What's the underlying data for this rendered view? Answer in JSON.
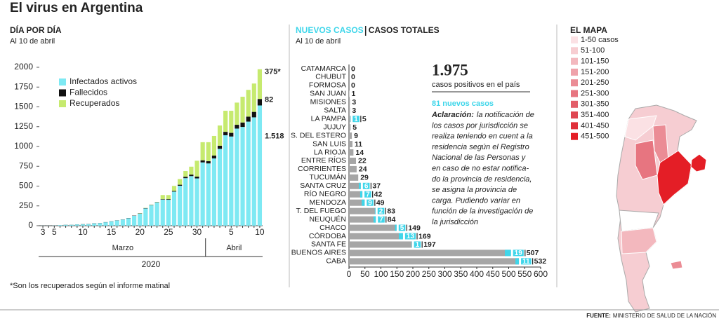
{
  "title": "El virus en Argentina",
  "chart_data": [
    {
      "type": "stacked_bar",
      "title": "DÍA POR DÍA",
      "subtitle": "Al 10 de abril",
      "categories": [
        "3",
        null,
        "5",
        null,
        null,
        null,
        null,
        "10",
        null,
        null,
        null,
        null,
        "15",
        null,
        null,
        null,
        null,
        "20",
        null,
        null,
        null,
        null,
        "25",
        null,
        null,
        null,
        null,
        "30",
        null,
        null,
        null,
        null,
        null,
        "5",
        null,
        null,
        null,
        null,
        "10"
      ],
      "series": [
        {
          "name": "Infectados activos",
          "color": "#7ee9f3",
          "values": [
            1,
            1,
            2,
            8,
            11,
            11,
            16,
            17,
            19,
            29,
            32,
            43,
            54,
            66,
            77,
            94,
            125,
            152,
            218,
            259,
            294,
            329,
            327,
            430,
            504,
            600,
            626,
            597,
            799,
            786,
            849,
            970,
            1142,
            1126,
            1226,
            1247,
            1314,
            1368,
            1518
          ],
          "value_labels": [
            null,
            null,
            null,
            null,
            null,
            null,
            null,
            null,
            null,
            null,
            null,
            null,
            null,
            null,
            null,
            null,
            null,
            null,
            null,
            null,
            null,
            null,
            null,
            null,
            null,
            null,
            null,
            null,
            null,
            null,
            null,
            null,
            null,
            null,
            null,
            null,
            null,
            null,
            "1.518"
          ]
        },
        {
          "name": "Fallecidos",
          "color": "#111111",
          "values": [
            0,
            0,
            0,
            0,
            1,
            1,
            1,
            2,
            2,
            2,
            2,
            2,
            2,
            2,
            2,
            3,
            3,
            3,
            4,
            4,
            4,
            6,
            8,
            9,
            13,
            18,
            19,
            23,
            27,
            28,
            36,
            39,
            43,
            46,
            48,
            56,
            63,
            69,
            82
          ],
          "value_labels": [
            null,
            null,
            null,
            null,
            null,
            null,
            null,
            null,
            null,
            null,
            null,
            null,
            null,
            null,
            null,
            null,
            null,
            null,
            null,
            null,
            null,
            null,
            null,
            null,
            null,
            null,
            null,
            null,
            null,
            null,
            null,
            null,
            null,
            null,
            null,
            null,
            null,
            null,
            "82"
          ]
        },
        {
          "name": "Recuperados",
          "color": "#c6ea6f",
          "values": [
            0,
            0,
            0,
            0,
            0,
            0,
            0,
            0,
            0,
            0,
            0,
            0,
            0,
            0,
            0,
            0,
            0,
            3,
            3,
            3,
            3,
            52,
            52,
            63,
            72,
            72,
            100,
            200,
            228,
            240,
            248,
            256,
            266,
            279,
            280,
            325,
            338,
            358,
            375
          ],
          "value_labels": [
            null,
            null,
            null,
            null,
            null,
            null,
            null,
            null,
            null,
            null,
            null,
            null,
            null,
            null,
            null,
            null,
            null,
            null,
            null,
            null,
            null,
            null,
            null,
            null,
            null,
            null,
            null,
            null,
            null,
            null,
            null,
            null,
            null,
            null,
            null,
            null,
            null,
            null,
            "375*"
          ]
        }
      ],
      "ylim": [
        0,
        2000
      ],
      "yticks": [
        0,
        250,
        500,
        750,
        1000,
        1250,
        1500,
        1750,
        2000
      ],
      "months": [
        "Marzo",
        "Abril"
      ],
      "year": "2020",
      "note": "*Son los recuperados según el informe matinal"
    },
    {
      "type": "hbar",
      "subtitle": "Al 10 de abril",
      "categories": [
        "CATAMARCA",
        "CHUBUT",
        "FORMOSA",
        "SAN JUAN",
        "MISIONES",
        "SALTA",
        "LA PAMPA",
        "JUJUY",
        "S. DEL ESTERO",
        "SAN LUIS",
        "LA RIOJA",
        "ENTRE RÍOS",
        "CORRIENTES",
        "TUCUMÁN",
        "SANTA CRUZ",
        "RÍO NEGRO",
        "MENDOZA",
        "T. DEL FUEGO",
        "NEUQUÉN",
        "CHACO",
        "CÓRDOBA",
        "SANTA FE",
        "BUENOS AIRES",
        "CABA"
      ],
      "series": [
        {
          "name": "NUEVOS CASOS",
          "color": "#3fd6ea",
          "values": [
            null,
            null,
            null,
            null,
            null,
            null,
            1,
            null,
            null,
            null,
            null,
            null,
            null,
            null,
            6,
            7,
            9,
            2,
            7,
            5,
            13,
            1,
            19,
            11
          ]
        },
        {
          "name": "CASOS TOTALES",
          "color": "#a6a6a6",
          "values": [
            0,
            0,
            0,
            1,
            3,
            3,
            5,
            5,
            9,
            11,
            14,
            22,
            24,
            29,
            37,
            42,
            49,
            83,
            84,
            149,
            169,
            197,
            507,
            532
          ]
        }
      ],
      "xlim": [
        0,
        600
      ],
      "xticks": [
        0,
        50,
        100,
        150,
        200,
        250,
        300,
        350,
        400,
        450,
        500,
        550,
        600
      ],
      "total": "1.975",
      "total_caption": "casos positivos en el país",
      "new_caption": "81 nuevos casos",
      "note_label": "Aclaración:",
      "note_lines": [
        "la notificación de",
        "los casos por jurisdicción se",
        "realiza teniendo en cuent a la",
        "residencia según el Registro",
        "Nacional de las Personas y",
        "en caso de no estar notifica-",
        "do la provincia de residencia,",
        "se asigna la provincia de",
        "carga. Pudiendo variar en",
        "función de la investigación de",
        "la jurisdicción"
      ]
    }
  ],
  "map": {
    "title": "EL MAPA",
    "legend": [
      {
        "label": "1-50 casos",
        "color": "#fbe1e4"
      },
      {
        "label": "51-100",
        "color": "#f7cdd1"
      },
      {
        "label": "101-150",
        "color": "#f3b8be"
      },
      {
        "label": "151-200",
        "color": "#efa2aa"
      },
      {
        "label": "201-250",
        "color": "#eb8c95"
      },
      {
        "label": "251-300",
        "color": "#e77580"
      },
      {
        "label": "301-350",
        "color": "#e35e69"
      },
      {
        "label": "351-400",
        "color": "#df4752"
      },
      {
        "label": "401-450",
        "color": "#e0303a"
      },
      {
        "label": "451-500",
        "color": "#e41e26"
      }
    ]
  },
  "footer": {
    "label": "FUENTE:",
    "text": "MINISTERIO DE SALUD DE LA NACIÓN"
  }
}
